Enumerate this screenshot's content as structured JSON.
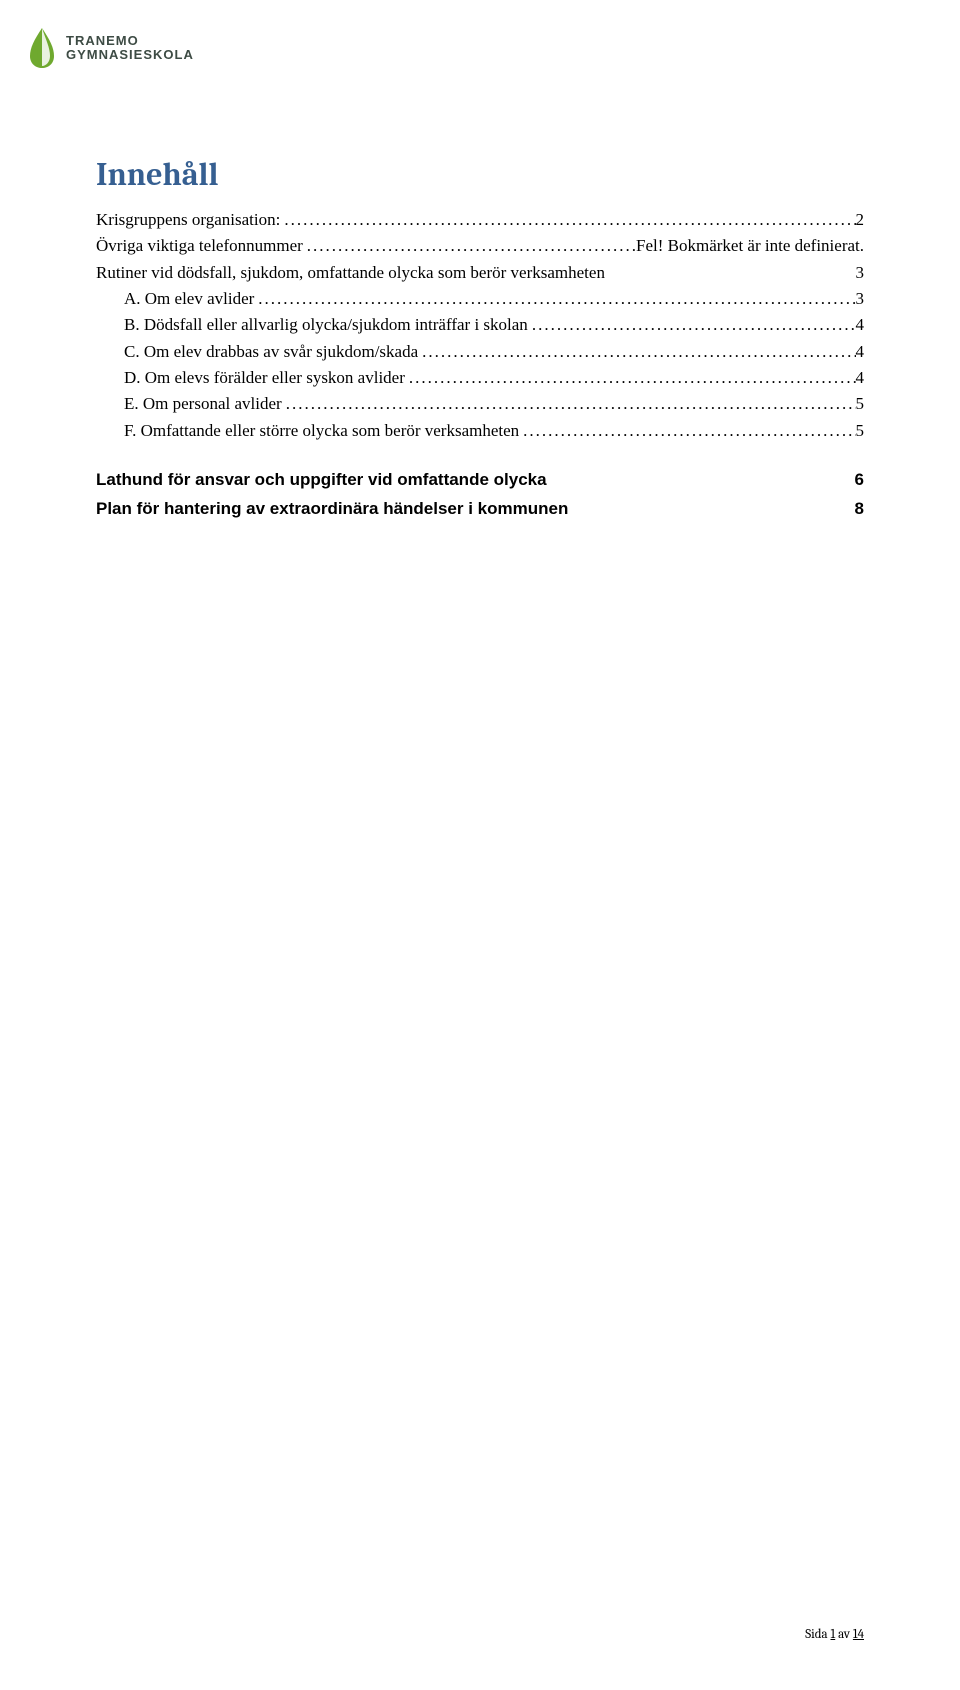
{
  "logo": {
    "line1": "TRANEMO",
    "line2": "GYMNASIESKOLA",
    "leaf_color": "#6fa92f",
    "drop_color": "#6fa92f"
  },
  "title": "Innehåll",
  "toc": {
    "rows": [
      {
        "label": "Krisgruppens organisation:",
        "page": "2",
        "indent": false,
        "dots": true
      },
      {
        "label": "Övriga viktiga telefonnummer",
        "page": "Fel! Bokmärket är inte definierat.",
        "indent": false,
        "dots": true
      },
      {
        "label": "Rutiner vid dödsfall, sjukdom, omfattande olycka som berör verksamheten",
        "page": "3",
        "indent": false,
        "dots": false
      },
      {
        "label": "A. Om elev avlider",
        "page": "3",
        "indent": true,
        "dots": true
      },
      {
        "label": "B. Dödsfall eller allvarlig olycka/sjukdom inträffar i skolan",
        "page": "4",
        "indent": true,
        "dots": true
      },
      {
        "label": "C. Om elev drabbas av svår sjukdom/skada",
        "page": "4",
        "indent": true,
        "dots": true
      },
      {
        "label": "D. Om elevs förälder eller syskon avlider",
        "page": "4",
        "indent": true,
        "dots": true
      },
      {
        "label": "E. Om personal avlider",
        "page": "5",
        "indent": true,
        "dots": true
      },
      {
        "label": "F. Omfattande eller större olycka som berör verksamheten",
        "page": "5",
        "indent": true,
        "dots": true
      }
    ]
  },
  "bold_sections": [
    {
      "label": "Lathund för ansvar och uppgifter vid omfattande olycka",
      "page": "6"
    },
    {
      "label": "Plan för hantering av extraordinära händelser i kommunen",
      "page": "8"
    }
  ],
  "footer": {
    "prefix": "Sida ",
    "current": "1",
    "middle": " av ",
    "total": "14"
  }
}
